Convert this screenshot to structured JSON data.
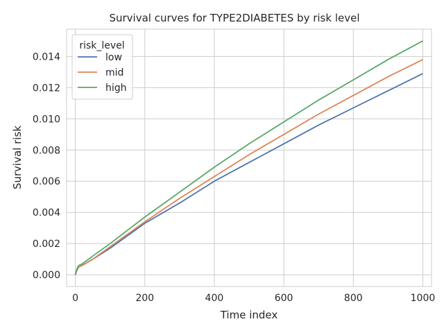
{
  "chart_data": {
    "type": "line",
    "title": "Survival curves for TYPE2DIABETES by risk level",
    "xlabel": "Time index",
    "ylabel": "Survival risk",
    "xlim": [
      -25,
      1025
    ],
    "ylim": [
      -0.00075,
      0.01575
    ],
    "xticks": [
      0,
      200,
      400,
      600,
      800,
      1000
    ],
    "yticks": [
      0.0,
      0.002,
      0.004,
      0.006,
      0.008,
      0.01,
      0.012,
      0.014
    ],
    "xtick_labels": [
      "0",
      "200",
      "400",
      "600",
      "800",
      "1000"
    ],
    "ytick_labels": [
      "0.000",
      "0.002",
      "0.004",
      "0.006",
      "0.008",
      "0.010",
      "0.012",
      "0.014"
    ],
    "grid": true,
    "legend": {
      "title": "risk_level",
      "placement": "upper-left"
    },
    "series": [
      {
        "name": "low",
        "color": "#4c72b0",
        "x": [
          0,
          5,
          10,
          20,
          50,
          100,
          200,
          300,
          400,
          500,
          600,
          700,
          800,
          900,
          1000
        ],
        "y": [
          0.0,
          0.0003,
          0.0005,
          0.0006,
          0.001,
          0.0017,
          0.0033,
          0.0046,
          0.006,
          0.0072,
          0.0084,
          0.0096,
          0.0107,
          0.0118,
          0.0129
        ]
      },
      {
        "name": "mid",
        "color": "#dd8452",
        "x": [
          0,
          5,
          10,
          20,
          50,
          100,
          200,
          300,
          400,
          500,
          600,
          700,
          800,
          900,
          1000
        ],
        "y": [
          0.0,
          0.0003,
          0.0005,
          0.0006,
          0.001,
          0.0018,
          0.0034,
          0.0049,
          0.0063,
          0.0077,
          0.009,
          0.0103,
          0.0115,
          0.0127,
          0.0138
        ]
      },
      {
        "name": "high",
        "color": "#55a868",
        "x": [
          0,
          5,
          10,
          20,
          50,
          100,
          200,
          300,
          400,
          500,
          600,
          700,
          800,
          900,
          1000
        ],
        "y": [
          0.0,
          0.0004,
          0.0006,
          0.0007,
          0.0012,
          0.002,
          0.0037,
          0.0053,
          0.0069,
          0.0084,
          0.0098,
          0.0112,
          0.0125,
          0.0138,
          0.015
        ]
      }
    ]
  }
}
